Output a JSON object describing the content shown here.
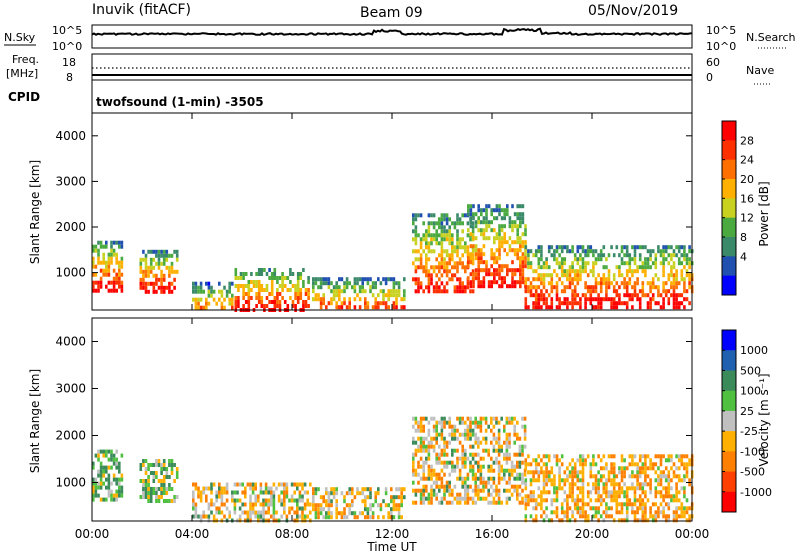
{
  "header": {
    "station": "Inuvik (fitACF)",
    "beam": "Beam 09",
    "date": "05/Nov/2019"
  },
  "noise_panel": {
    "left_label": "N.Sky",
    "left_ticks": [
      "10^5",
      "10^0"
    ],
    "right_label": "N.Search",
    "right_ticks": [
      "10^5",
      "10^0"
    ]
  },
  "freq_panel": {
    "left_label_line1": "Freq.",
    "left_label_line2": "[MHz]",
    "left_ticks": [
      "18",
      "8"
    ],
    "right_label": "Nave",
    "right_ticks": [
      "60",
      "0"
    ]
  },
  "cpid": {
    "label": "CPID",
    "program": "twofsound (1-min) -3505"
  },
  "colors": {
    "power_scale": [
      "#0000ff",
      "#2050b0",
      "#3a8a6a",
      "#4aaa40",
      "#c8d020",
      "#ffb000",
      "#ff7000",
      "#ff3000",
      "#ff0000"
    ],
    "velocity_scale": [
      "#0000ff",
      "#2060b0",
      "#3a8a5a",
      "#50c040",
      "#c0c0c0",
      "#ffb000",
      "#ff8000",
      "#ff4000",
      "#ff0000"
    ]
  },
  "chart_data": [
    {
      "type": "heatmap",
      "name": "power",
      "ylabel": "Slant Range [km]",
      "xlabel": "",
      "ylim": [
        180,
        4500
      ],
      "yticks": [
        "1000",
        "2000",
        "3000",
        "4000"
      ],
      "ytick_values": [
        1000,
        2000,
        3000,
        4000
      ],
      "xlim": [
        0,
        24
      ],
      "colorbar": {
        "label": "Power [dB]",
        "ticks": [
          "4",
          "8",
          "12",
          "16",
          "20",
          "24",
          "28"
        ],
        "range": [
          0,
          32
        ]
      },
      "patches": [
        {
          "t0": 0.0,
          "t1": 1.2,
          "r0": 600,
          "r1": 1700,
          "peak": 30
        },
        {
          "t0": 1.9,
          "t1": 3.4,
          "r0": 600,
          "r1": 1500,
          "peak": 29
        },
        {
          "t0": 4.0,
          "t1": 5.6,
          "r0": 200,
          "r1": 800,
          "peak": 22
        },
        {
          "t0": 5.7,
          "t1": 8.7,
          "r0": 180,
          "r1": 1100,
          "peak": 30
        },
        {
          "t0": 8.8,
          "t1": 12.5,
          "r0": 250,
          "r1": 900,
          "peak": 24
        },
        {
          "t0": 12.8,
          "t1": 15.2,
          "r0": 600,
          "r1": 2300,
          "peak": 27
        },
        {
          "t0": 15.0,
          "t1": 17.3,
          "r0": 700,
          "r1": 2500,
          "peak": 28
        },
        {
          "t0": 17.3,
          "t1": 24.0,
          "r0": 200,
          "r1": 1600,
          "peak": 30
        }
      ]
    },
    {
      "type": "heatmap",
      "name": "velocity",
      "ylabel": "Slant Range [km]",
      "xlabel": "Time UT",
      "ylim": [
        180,
        4500
      ],
      "yticks": [
        "1000",
        "2000",
        "3000",
        "4000"
      ],
      "ytick_values": [
        1000,
        2000,
        3000,
        4000
      ],
      "xlim": [
        0,
        24
      ],
      "xticks": [
        "00:00",
        "04:00",
        "08:00",
        "12:00",
        "16:00",
        "20:00",
        "00:00"
      ],
      "xtick_values": [
        0,
        4,
        8,
        12,
        16,
        20,
        24
      ],
      "colorbar": {
        "label": "Velocity [m s⁻¹]",
        "ticks": [
          "1000",
          "500",
          "100",
          "25",
          "-25",
          "-100",
          "-500",
          "-1000"
        ]
      },
      "patches": [
        {
          "t0": 0.0,
          "t1": 1.2,
          "r0": 600,
          "r1": 1700,
          "v": "positive"
        },
        {
          "t0": 1.9,
          "t1": 3.4,
          "r0": 600,
          "r1": 1500,
          "v": "positive"
        },
        {
          "t0": 4.0,
          "t1": 8.7,
          "r0": 180,
          "r1": 1000,
          "v": "mixed"
        },
        {
          "t0": 8.8,
          "t1": 12.5,
          "r0": 250,
          "r1": 900,
          "v": "mixed"
        },
        {
          "t0": 12.8,
          "t1": 17.3,
          "r0": 600,
          "r1": 2400,
          "v": "mixed"
        },
        {
          "t0": 17.3,
          "t1": 24.0,
          "r0": 200,
          "r1": 1600,
          "v": "negative"
        }
      ]
    }
  ]
}
